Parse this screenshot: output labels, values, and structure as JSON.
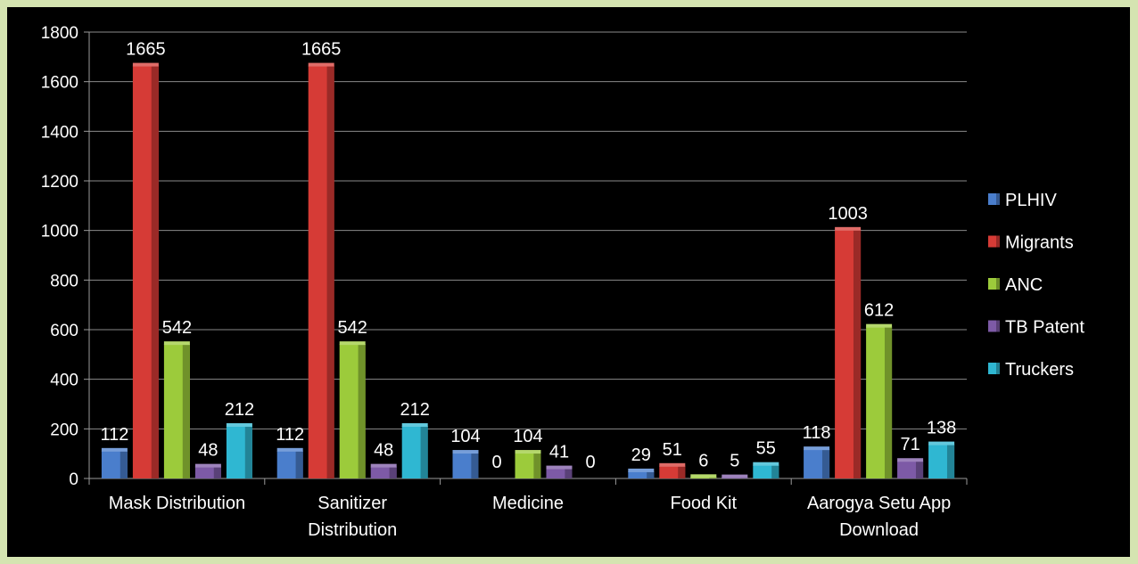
{
  "chart_data": {
    "type": "bar",
    "categories": [
      [
        "Mask Distribution"
      ],
      [
        "Sanitizer",
        "Distribution"
      ],
      [
        "Medicine"
      ],
      [
        "Food Kit"
      ],
      [
        "Aarogya Setu App",
        "Download"
      ]
    ],
    "series": [
      {
        "name": "PLHIV",
        "values": [
          112,
          112,
          104,
          29,
          118
        ],
        "color": "#4a7ecc"
      },
      {
        "name": "Migrants",
        "values": [
          1665,
          1665,
          0,
          51,
          1003
        ],
        "color": "#d63b36"
      },
      {
        "name": "ANC",
        "values": [
          542,
          542,
          104,
          6,
          612
        ],
        "color": "#9ccb3b"
      },
      {
        "name": "TB Patent",
        "values": [
          48,
          48,
          41,
          5,
          71
        ],
        "color": "#7d5aa6"
      },
      {
        "name": "Truckers",
        "values": [
          212,
          212,
          0,
          55,
          138
        ],
        "color": "#2fb7d2"
      }
    ],
    "yticks": [
      0,
      200,
      400,
      600,
      800,
      1000,
      1200,
      1400,
      1600,
      1800
    ],
    "ylim": [
      0,
      1800
    ],
    "grid": true,
    "legend_position": "right",
    "background": "#000000",
    "frame_color": "#d5e4b1"
  }
}
